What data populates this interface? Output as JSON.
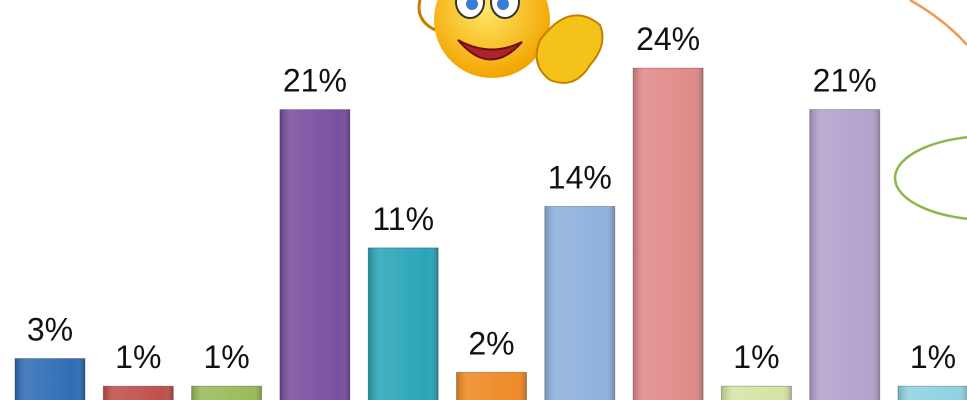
{
  "chart_data": {
    "type": "bar",
    "categories": [
      null,
      null,
      null,
      null,
      null,
      null,
      null,
      null,
      null,
      null,
      null
    ],
    "values": [
      3,
      1,
      1,
      21,
      11,
      2,
      14,
      24,
      1,
      21,
      1
    ],
    "value_labels": [
      "3%",
      "1%",
      "1%",
      "21%",
      "11%",
      "2%",
      "14%",
      "24%",
      "1%",
      "21%",
      "1%"
    ],
    "colors": [
      "#2f6eb5",
      "#c0504d",
      "#9bbb59",
      "#7a4fa0",
      "#2ba5b9",
      "#f08a27",
      "#8fb1de",
      "#e08b89",
      "#d6e4a4",
      "#b3a3cd",
      "#8fd2e2"
    ]
  }
}
